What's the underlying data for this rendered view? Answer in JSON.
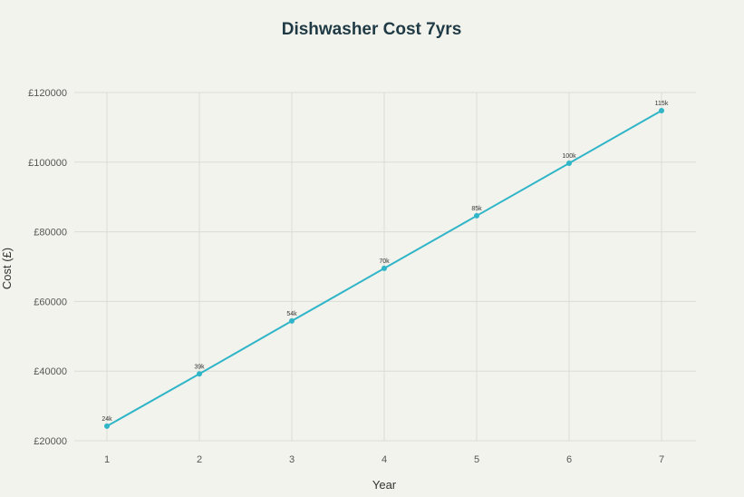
{
  "chart_data": {
    "type": "line",
    "title": "Dishwasher Cost 7yrs",
    "xlabel": "Year",
    "ylabel": "Cost (£)",
    "x": [
      1,
      2,
      3,
      4,
      5,
      6,
      7
    ],
    "x_tick_labels": [
      "1",
      "2",
      "3",
      "4",
      "5",
      "6",
      "7"
    ],
    "ylim": [
      20000,
      120000
    ],
    "y_ticks": [
      20000,
      40000,
      60000,
      80000,
      100000,
      120000
    ],
    "y_tick_labels": [
      "£20000",
      "£40000",
      "£60000",
      "£80000",
      "£100000",
      "£120000"
    ],
    "series": [
      {
        "values": [
          24200,
          39200,
          54400,
          69500,
          84600,
          99700,
          114800
        ],
        "data_labels": [
          "24k",
          "39k",
          "54k",
          "70k",
          "85k",
          "100k",
          "115k"
        ],
        "color": "#2fb5c7"
      }
    ],
    "grid": true,
    "legend": "none"
  }
}
